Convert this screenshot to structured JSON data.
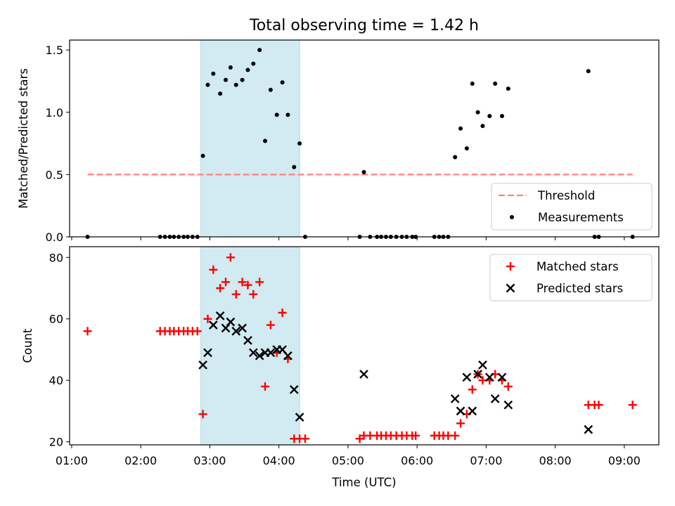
{
  "figure": {
    "title": "Total observing time = 1.42 h"
  },
  "chart_data": [
    {
      "type": "scatter",
      "title": "Total observing time = 1.42 h",
      "xlabel": "",
      "ylabel": "Matched/Predicted stars",
      "xlim": [
        0.97,
        9.5
      ],
      "ylim": [
        0.0,
        1.58
      ],
      "yticks": [
        0.0,
        0.5,
        1.0,
        1.5
      ],
      "ytick_labels": [
        "0.0",
        "0.5",
        "1.0",
        "1.5"
      ],
      "shaded_interval": [
        2.87,
        4.3
      ],
      "shade_color": "#add8e6",
      "threshold": {
        "name": "Threshold",
        "y": 0.5,
        "x": [
          1.23,
          9.12
        ],
        "color": "#ff7f7f",
        "style": "dashed"
      },
      "legend": {
        "placement": "lower-right",
        "entries": [
          "Threshold",
          "Measurements"
        ]
      },
      "series": [
        {
          "name": "Measurements",
          "marker": "dot",
          "color": "#000000",
          "x": [
            1.23,
            2.28,
            2.35,
            2.42,
            2.48,
            2.55,
            2.62,
            2.68,
            2.75,
            2.82,
            2.9,
            2.97,
            3.05,
            3.15,
            3.23,
            3.3,
            3.38,
            3.47,
            3.55,
            3.63,
            3.72,
            3.8,
            3.88,
            3.97,
            4.05,
            4.13,
            4.22,
            4.3,
            4.38,
            5.17,
            5.23,
            5.32,
            5.42,
            5.48,
            5.55,
            5.62,
            5.7,
            5.78,
            5.85,
            5.93,
            5.98,
            6.25,
            6.32,
            6.38,
            6.45,
            6.55,
            6.63,
            6.72,
            6.8,
            6.88,
            6.95,
            7.05,
            7.13,
            7.23,
            7.32,
            8.48,
            8.57,
            8.63,
            9.12
          ],
          "y": [
            0.0,
            0.0,
            0.0,
            0.0,
            0.0,
            0.0,
            0.0,
            0.0,
            0.0,
            0.0,
            0.65,
            1.22,
            1.31,
            1.15,
            1.26,
            1.36,
            1.22,
            1.26,
            1.34,
            1.39,
            1.5,
            0.77,
            1.18,
            0.98,
            1.24,
            0.98,
            0.56,
            0.75,
            0.0,
            0.0,
            0.52,
            0.0,
            0.0,
            0.0,
            0.0,
            0.0,
            0.0,
            0.0,
            0.0,
            0.0,
            0.0,
            0.0,
            0.0,
            0.0,
            0.0,
            0.64,
            0.87,
            0.71,
            1.23,
            1.0,
            0.89,
            0.97,
            1.23,
            0.97,
            1.19,
            1.33,
            0.0,
            0.0,
            0.0
          ]
        }
      ]
    },
    {
      "type": "scatter",
      "title": "",
      "xlabel": "Time (UTC)",
      "ylabel": "Count",
      "xlim": [
        0.97,
        9.5
      ],
      "ylim": [
        19.0,
        83.5
      ],
      "xticks": [
        1,
        2,
        3,
        4,
        5,
        6,
        7,
        8,
        9
      ],
      "xtick_labels": [
        "01:00",
        "02:00",
        "03:00",
        "04:00",
        "05:00",
        "06:00",
        "07:00",
        "08:00",
        "09:00"
      ],
      "yticks": [
        20,
        40,
        60,
        80
      ],
      "ytick_labels": [
        "20",
        "40",
        "60",
        "80"
      ],
      "shaded_interval": [
        2.87,
        4.3
      ],
      "shade_color": "#add8e6",
      "legend": {
        "placement": "top-right",
        "entries": [
          "Matched stars",
          "Predicted stars"
        ]
      },
      "series": [
        {
          "name": "Matched stars",
          "marker": "plus",
          "color": "#ff0000",
          "x": [
            1.23,
            2.28,
            2.35,
            2.42,
            2.48,
            2.55,
            2.62,
            2.68,
            2.75,
            2.82,
            2.9,
            2.97,
            3.05,
            3.15,
            3.23,
            3.3,
            3.38,
            3.47,
            3.55,
            3.63,
            3.72,
            3.8,
            3.88,
            3.97,
            4.05,
            4.13,
            4.22,
            4.3,
            4.38,
            5.17,
            5.23,
            5.32,
            5.42,
            5.48,
            5.55,
            5.62,
            5.7,
            5.78,
            5.85,
            5.93,
            5.98,
            6.25,
            6.32,
            6.38,
            6.45,
            6.55,
            6.63,
            6.72,
            6.8,
            6.88,
            6.95,
            7.05,
            7.13,
            7.23,
            7.32,
            8.48,
            8.57,
            8.63,
            9.12
          ],
          "y": [
            56,
            56,
            56,
            56,
            56,
            56,
            56,
            56,
            56,
            56,
            29,
            60,
            76,
            70,
            72,
            80,
            68,
            72,
            71,
            68,
            72,
            38,
            58,
            49,
            62,
            47,
            21,
            21,
            21,
            21,
            22,
            22,
            22,
            22,
            22,
            22,
            22,
            22,
            22,
            22,
            22,
            22,
            22,
            22,
            22,
            22,
            26,
            29,
            37,
            42,
            40,
            40,
            42,
            40,
            38,
            32,
            32,
            32,
            32
          ]
        },
        {
          "name": "Predicted stars",
          "marker": "x",
          "color": "#000000",
          "x": [
            2.9,
            2.97,
            3.05,
            3.15,
            3.23,
            3.3,
            3.38,
            3.47,
            3.55,
            3.63,
            3.72,
            3.8,
            3.88,
            3.97,
            4.05,
            4.13,
            4.22,
            4.3,
            5.23,
            6.55,
            6.63,
            6.72,
            6.8,
            6.88,
            6.95,
            7.05,
            7.13,
            7.23,
            7.32,
            8.48
          ],
          "y": [
            45,
            49,
            58,
            61,
            57,
            59,
            56,
            57,
            53,
            49,
            48,
            49,
            49,
            50,
            50,
            48,
            37,
            28,
            42,
            34,
            30,
            41,
            30,
            42,
            45,
            41,
            34,
            41,
            32,
            24
          ]
        }
      ]
    }
  ]
}
